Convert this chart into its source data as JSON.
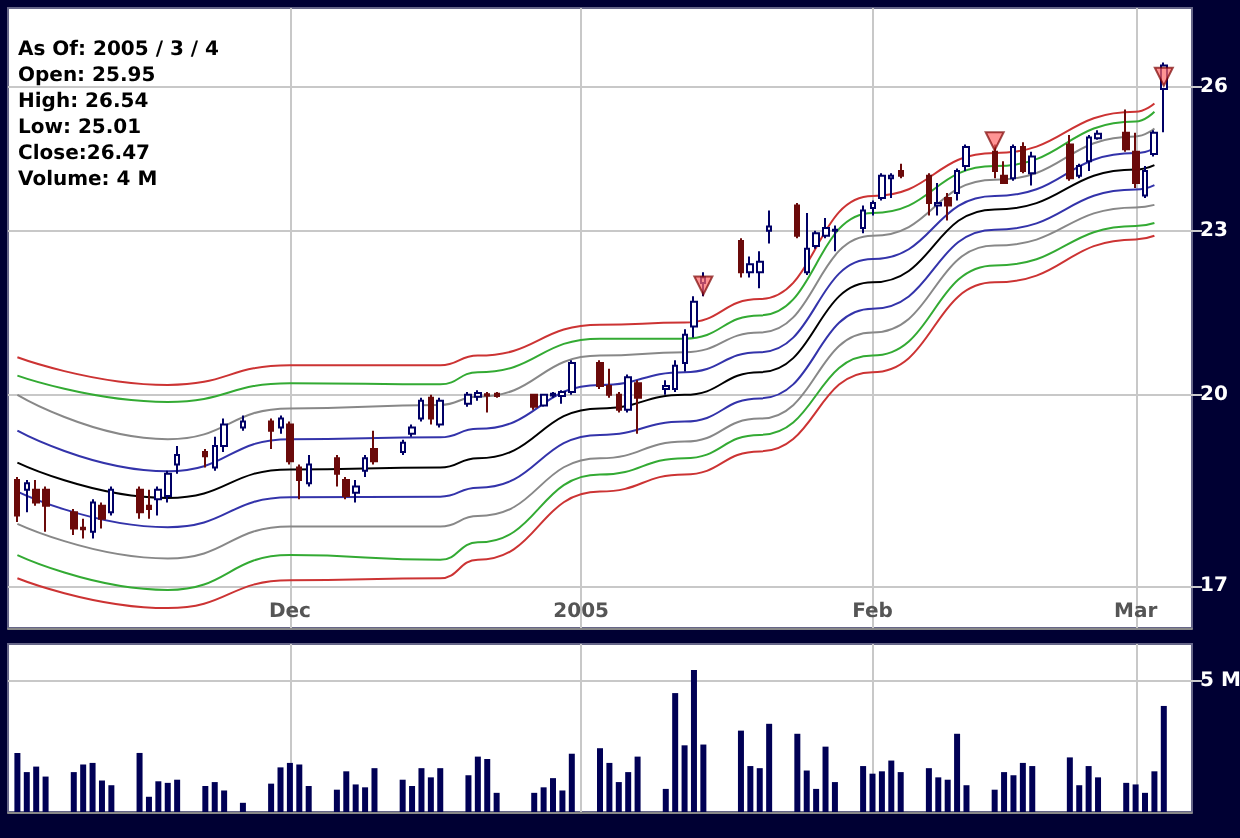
{
  "chart_data": [
    {
      "type": "candlestick",
      "annotations": [
        "As Of: 2005 / 3 / 4",
        "Open: 25.95",
        "High: 26.54",
        "Low: 25.01",
        "Close:26.47",
        "Volume: 4 M"
      ],
      "x": [
        "2004-11-02",
        "2004-11-03",
        "2004-11-04",
        "2004-11-05",
        "2004-11-08",
        "2004-11-09",
        "2004-11-10",
        "2004-11-11",
        "2004-11-12",
        "2004-11-15",
        "2004-11-16",
        "2004-11-17",
        "2004-11-18",
        "2004-11-19",
        "2004-11-22",
        "2004-11-23",
        "2004-11-24",
        "2004-11-26",
        "2004-11-29",
        "2004-11-30",
        "2004-12-01",
        "2004-12-02",
        "2004-12-03",
        "2004-12-06",
        "2004-12-07",
        "2004-12-08",
        "2004-12-09",
        "2004-12-10",
        "2004-12-13",
        "2004-12-14",
        "2004-12-15",
        "2004-12-16",
        "2004-12-17",
        "2004-12-20",
        "2004-12-21",
        "2004-12-22",
        "2004-12-23",
        "2004-12-27",
        "2004-12-28",
        "2004-12-29",
        "2004-12-30",
        "2004-12-31",
        "2005-01-03",
        "2005-01-04",
        "2005-01-05",
        "2005-01-06",
        "2005-01-07",
        "2005-01-10",
        "2005-01-11",
        "2005-01-12",
        "2005-01-13",
        "2005-01-14",
        "2005-01-18",
        "2005-01-19",
        "2005-01-20",
        "2005-01-21",
        "2005-01-24",
        "2005-01-25",
        "2005-01-26",
        "2005-01-27",
        "2005-01-28",
        "2005-01-31",
        "2005-02-01",
        "2005-02-02",
        "2005-02-03",
        "2005-02-04",
        "2005-02-07",
        "2005-02-08",
        "2005-02-09",
        "2005-02-10",
        "2005-02-11",
        "2005-02-14",
        "2005-02-15",
        "2005-02-16",
        "2005-02-17",
        "2005-02-18",
        "2005-02-22",
        "2005-02-23",
        "2005-02-24",
        "2005-02-25",
        "2005-02-28",
        "2005-03-01",
        "2005-03-02",
        "2005-03-03",
        "2005-03-04"
      ],
      "ohlc": [
        [
          18.6,
          18.65,
          17.95,
          18.05
        ],
        [
          18.45,
          18.6,
          18.1,
          18.55
        ],
        [
          18.45,
          18.6,
          18.2,
          18.25
        ],
        [
          18.45,
          18.5,
          17.8,
          18.2
        ],
        [
          18.1,
          18.15,
          17.75,
          17.85
        ],
        [
          17.86,
          18.0,
          17.7,
          17.84
        ],
        [
          17.8,
          18.3,
          17.7,
          18.25
        ],
        [
          18.2,
          18.25,
          17.85,
          18.0
        ],
        [
          18.1,
          18.5,
          18.05,
          18.45
        ],
        [
          18.45,
          18.5,
          18.0,
          18.1
        ],
        [
          18.2,
          18.45,
          18.0,
          18.15
        ],
        [
          18.3,
          18.5,
          18.05,
          18.45
        ],
        [
          18.35,
          18.75,
          18.25,
          18.7
        ],
        [
          18.85,
          19.15,
          18.7,
          19.0
        ],
        [
          19.05,
          19.1,
          18.8,
          18.98
        ],
        [
          18.8,
          19.3,
          18.75,
          19.15
        ],
        [
          19.15,
          19.6,
          19.05,
          19.5
        ],
        [
          19.45,
          19.65,
          19.4,
          19.55
        ],
        [
          19.55,
          19.6,
          19.1,
          19.4
        ],
        [
          19.45,
          19.65,
          19.35,
          19.6
        ],
        [
          19.5,
          19.55,
          18.85,
          18.9
        ],
        [
          18.8,
          18.85,
          18.3,
          18.6
        ],
        [
          18.55,
          19.0,
          18.5,
          18.85
        ],
        [
          18.95,
          19.0,
          18.5,
          18.7
        ],
        [
          18.6,
          18.65,
          18.3,
          18.35
        ],
        [
          18.4,
          18.6,
          18.25,
          18.5
        ],
        [
          18.75,
          19.0,
          18.65,
          18.95
        ],
        [
          19.1,
          19.4,
          18.85,
          18.9
        ],
        [
          19.05,
          19.25,
          19.0,
          19.2
        ],
        [
          19.35,
          19.5,
          19.3,
          19.45
        ],
        [
          19.6,
          19.95,
          19.55,
          19.9
        ],
        [
          19.95,
          20.0,
          19.5,
          19.6
        ],
        [
          19.5,
          19.95,
          19.45,
          19.9
        ],
        [
          19.85,
          20.05,
          19.8,
          20.0
        ],
        [
          19.97,
          20.08,
          19.9,
          20.03
        ],
        [
          20.01,
          20.05,
          19.7,
          19.99
        ],
        [
          20.02,
          20.05,
          19.95,
          19.98
        ],
        [
          20.0,
          20.02,
          19.75,
          19.8
        ],
        [
          19.82,
          20.02,
          19.8,
          20.0
        ],
        [
          19.99,
          20.05,
          19.95,
          20.02
        ],
        [
          19.98,
          20.08,
          19.85,
          20.05
        ],
        [
          20.05,
          20.6,
          20.0,
          20.55
        ],
        [
          20.55,
          20.6,
          20.1,
          20.15
        ],
        [
          20.15,
          20.45,
          19.95,
          20.0
        ],
        [
          20.0,
          20.05,
          19.7,
          19.75
        ],
        [
          19.75,
          20.35,
          19.7,
          20.3
        ],
        [
          20.2,
          20.25,
          19.35,
          19.95
        ],
        [
          20.1,
          20.25,
          20.0,
          20.15
        ],
        [
          20.1,
          20.6,
          20.05,
          20.5
        ],
        [
          20.55,
          21.15,
          20.4,
          21.05
        ],
        [
          21.2,
          21.75,
          21.0,
          21.65
        ],
        [
          22.0,
          22.2,
          21.75,
          22.1
        ],
        [
          22.8,
          22.85,
          22.1,
          22.2
        ],
        [
          22.2,
          22.5,
          22.1,
          22.35
        ],
        [
          22.2,
          22.6,
          21.9,
          22.4
        ],
        [
          23.0,
          23.4,
          22.75,
          23.08
        ],
        [
          23.5,
          23.55,
          22.85,
          22.9
        ],
        [
          22.2,
          23.35,
          22.15,
          22.65
        ],
        [
          22.7,
          23.0,
          22.65,
          22.95
        ],
        [
          22.9,
          23.25,
          22.85,
          23.05
        ],
        [
          23.0,
          23.1,
          22.6,
          23.02
        ],
        [
          23.05,
          23.5,
          22.95,
          23.4
        ],
        [
          23.45,
          23.6,
          23.3,
          23.55
        ],
        [
          23.65,
          24.15,
          23.6,
          24.1
        ],
        [
          24.05,
          24.15,
          23.65,
          24.1
        ],
        [
          24.2,
          24.35,
          24.05,
          24.1
        ],
        [
          24.1,
          24.15,
          23.3,
          23.55
        ],
        [
          23.5,
          23.95,
          23.3,
          23.55
        ],
        [
          23.65,
          23.75,
          23.2,
          23.5
        ],
        [
          23.75,
          24.25,
          23.6,
          24.2
        ],
        [
          24.3,
          24.75,
          24.2,
          24.7
        ],
        [
          24.6,
          24.75,
          24.05,
          24.2
        ],
        [
          24.1,
          24.4,
          23.95,
          23.95
        ],
        [
          24.05,
          24.75,
          24.0,
          24.7
        ],
        [
          24.7,
          24.8,
          24.15,
          24.2
        ],
        [
          24.15,
          24.6,
          23.9,
          24.5
        ],
        [
          24.75,
          24.95,
          24.0,
          24.05
        ],
        [
          24.1,
          24.35,
          24.05,
          24.3
        ],
        [
          24.4,
          24.95,
          24.2,
          24.9
        ],
        [
          24.88,
          25.05,
          24.85,
          24.98
        ],
        [
          25.0,
          25.5,
          24.6,
          24.65
        ],
        [
          24.6,
          25.0,
          23.85,
          23.95
        ],
        [
          23.7,
          24.3,
          23.65,
          24.2
        ],
        [
          24.55,
          25.05,
          24.5,
          25.0
        ],
        [
          25.95,
          26.54,
          25.01,
          26.47
        ]
      ],
      "series": [
        {
          "type": "line",
          "color": "#cc3333",
          "x": [
            "2004-11-02",
            "2004-11-18",
            "2004-12-01",
            "2004-12-17",
            "2004-12-21",
            "2005-01-03",
            "2005-01-12",
            "2005-01-20",
            "2005-02-01",
            "2005-02-14",
            "2005-03-01",
            "2005-03-03"
          ],
          "values": [
            20.65,
            20.17,
            20.51,
            20.51,
            20.68,
            21.23,
            21.27,
            21.7,
            23.69,
            24.57,
            25.45,
            25.63
          ]
        },
        {
          "type": "line",
          "color": "#33aa33",
          "x": [
            "2004-11-02",
            "2004-11-18",
            "2004-12-01",
            "2004-12-17",
            "2004-12-21",
            "2005-01-03",
            "2005-01-12",
            "2005-01-20",
            "2005-02-01",
            "2005-02-14",
            "2005-03-01",
            "2005-03-03"
          ],
          "values": [
            20.33,
            19.88,
            20.2,
            20.18,
            20.39,
            20.98,
            20.98,
            21.4,
            23.35,
            24.3,
            25.24,
            25.45
          ]
        },
        {
          "type": "line",
          "color": "#888888",
          "x": [
            "2004-11-02",
            "2004-11-18",
            "2004-12-01",
            "2004-12-17",
            "2004-12-21",
            "2005-01-03",
            "2005-01-12",
            "2005-01-20",
            "2005-02-01",
            "2005-02-14",
            "2005-03-01",
            "2005-03-03"
          ],
          "values": [
            20.0,
            19.26,
            19.77,
            19.83,
            19.97,
            20.68,
            20.74,
            21.09,
            22.9,
            24.02,
            24.92,
            25.09
          ]
        },
        {
          "type": "line",
          "color": "#3333aa",
          "x": [
            "2004-11-02",
            "2004-11-18",
            "2004-12-01",
            "2004-12-17",
            "2004-12-21",
            "2005-01-03",
            "2005-01-12",
            "2005-01-20",
            "2005-02-01",
            "2005-02-14",
            "2005-03-01",
            "2005-03-03"
          ],
          "values": [
            19.4,
            18.74,
            19.26,
            19.29,
            19.43,
            20.17,
            20.39,
            20.74,
            22.45,
            23.69,
            24.57,
            24.67
          ]
        },
        {
          "type": "line",
          "color": "#000000",
          "x": [
            "2004-11-02",
            "2004-11-18",
            "2004-12-01",
            "2004-12-17",
            "2004-12-21",
            "2005-01-03",
            "2005-01-12",
            "2005-01-20",
            "2005-02-01",
            "2005-02-14",
            "2005-03-01",
            "2005-03-03"
          ],
          "values": [
            18.88,
            18.32,
            18.77,
            18.8,
            18.95,
            19.77,
            20.0,
            20.39,
            22.01,
            23.42,
            24.23,
            24.32
          ]
        },
        {
          "type": "line",
          "color": "#3333aa",
          "x": [
            "2004-11-02",
            "2004-11-18",
            "2004-12-01",
            "2004-12-17",
            "2004-12-21",
            "2005-01-03",
            "2005-01-12",
            "2005-01-20",
            "2005-02-01",
            "2005-02-14",
            "2005-03-01",
            "2005-03-03"
          ],
          "values": [
            18.42,
            17.87,
            18.33,
            18.34,
            18.48,
            19.33,
            19.55,
            19.94,
            21.52,
            23.02,
            23.82,
            23.91
          ]
        },
        {
          "type": "line",
          "color": "#888888",
          "x": [
            "2004-11-02",
            "2004-11-18",
            "2004-12-01",
            "2004-12-17",
            "2004-12-21",
            "2005-01-03",
            "2005-01-12",
            "2005-01-20",
            "2005-02-01",
            "2005-02-14",
            "2005-03-01",
            "2005-03-03"
          ],
          "values": [
            17.92,
            17.4,
            17.88,
            17.88,
            18.04,
            18.95,
            19.22,
            19.6,
            21.09,
            22.71,
            23.46,
            23.51
          ]
        },
        {
          "type": "line",
          "color": "#33aa33",
          "x": [
            "2004-11-02",
            "2004-11-18",
            "2004-12-01",
            "2004-12-17",
            "2004-12-21",
            "2005-01-03",
            "2005-01-12",
            "2005-01-20",
            "2005-02-01",
            "2005-02-14",
            "2005-03-01",
            "2005-03-03"
          ],
          "values": [
            17.45,
            16.94,
            17.45,
            17.38,
            17.64,
            18.69,
            18.95,
            19.33,
            20.68,
            22.33,
            23.09,
            23.15
          ]
        },
        {
          "type": "line",
          "color": "#cc3333",
          "x": [
            "2004-11-02",
            "2004-11-18",
            "2004-12-01",
            "2004-12-17",
            "2004-12-21",
            "2005-01-03",
            "2005-01-12",
            "2005-01-20",
            "2005-02-01",
            "2005-02-14",
            "2005-03-01",
            "2005-03-03"
          ],
          "values": [
            17.11,
            16.68,
            17.08,
            17.11,
            17.38,
            18.42,
            18.69,
            19.06,
            20.39,
            22.01,
            22.83,
            22.9
          ]
        },
        {
          "type": "scatter",
          "color": "#ff6666",
          "marker": "triangle",
          "x": [
            "2005-01-14",
            "2005-02-14",
            "2005-03-04"
          ],
          "values": [
            21.95,
            24.82,
            26.22
          ]
        }
      ],
      "marker": "none",
      "log": "y",
      "ylim": [
        16.4,
        27.8
      ],
      "yticks": [
        17,
        20,
        23,
        26
      ],
      "xlim": [
        "2004-11-01",
        "2005-03-07"
      ],
      "xticks": [
        {
          "value": "2004-12-01",
          "label": "Dec"
        },
        {
          "value": "2005-01-01",
          "label": "2005"
        },
        {
          "value": "2005-02-01",
          "label": "Feb"
        },
        {
          "value": "2005-03-01",
          "label": "Mar"
        }
      ],
      "grid": true
    },
    {
      "type": "bar",
      "color": "#000055",
      "x": [
        "2004-11-02",
        "2004-11-03",
        "2004-11-04",
        "2004-11-05",
        "2004-11-08",
        "2004-11-09",
        "2004-11-10",
        "2004-11-11",
        "2004-11-12",
        "2004-11-15",
        "2004-11-16",
        "2004-11-17",
        "2004-11-18",
        "2004-11-19",
        "2004-11-22",
        "2004-11-23",
        "2004-11-24",
        "2004-11-26",
        "2004-11-29",
        "2004-11-30",
        "2004-12-01",
        "2004-12-02",
        "2004-12-03",
        "2004-12-06",
        "2004-12-07",
        "2004-12-08",
        "2004-12-09",
        "2004-12-10",
        "2004-12-13",
        "2004-12-14",
        "2004-12-15",
        "2004-12-16",
        "2004-12-17",
        "2004-12-20",
        "2004-12-21",
        "2004-12-22",
        "2004-12-23",
        "2004-12-27",
        "2004-12-28",
        "2004-12-29",
        "2004-12-30",
        "2004-12-31",
        "2005-01-03",
        "2005-01-04",
        "2005-01-05",
        "2005-01-06",
        "2005-01-07",
        "2005-01-10",
        "2005-01-11",
        "2005-01-12",
        "2005-01-13",
        "2005-01-14",
        "2005-01-18",
        "2005-01-19",
        "2005-01-20",
        "2005-01-21",
        "2005-01-24",
        "2005-01-25",
        "2005-01-26",
        "2005-01-27",
        "2005-01-28",
        "2005-01-31",
        "2005-02-01",
        "2005-02-02",
        "2005-02-03",
        "2005-02-04",
        "2005-02-07",
        "2005-02-08",
        "2005-02-09",
        "2005-02-10",
        "2005-02-11",
        "2005-02-14",
        "2005-02-15",
        "2005-02-16",
        "2005-02-17",
        "2005-02-18",
        "2005-02-22",
        "2005-02-23",
        "2005-02-24",
        "2005-02-25",
        "2005-02-28",
        "2005-03-01",
        "2005-03-02",
        "2005-03-03",
        "2005-03-04"
      ],
      "values": [
        2.25,
        1.52,
        1.73,
        1.35,
        1.52,
        1.81,
        1.87,
        1.2,
        1.02,
        2.25,
        0.58,
        1.17,
        1.11,
        1.23,
        0.99,
        1.14,
        0.82,
        0.35,
        1.08,
        1.7,
        1.87,
        1.81,
        0.99,
        0.85,
        1.55,
        1.05,
        0.94,
        1.67,
        1.23,
        0.99,
        1.67,
        1.32,
        1.67,
        1.4,
        2.11,
        2.02,
        0.73,
        0.73,
        0.94,
        1.29,
        0.82,
        2.22,
        2.43,
        1.87,
        1.14,
        1.52,
        2.11,
        0.88,
        4.53,
        2.54,
        5.41,
        2.57,
        3.1,
        1.75,
        1.67,
        3.36,
        2.98,
        1.58,
        0.88,
        2.49,
        1.14,
        1.75,
        1.46,
        1.55,
        1.96,
        1.52,
        1.67,
        1.32,
        1.23,
        2.98,
        1.02,
        0.85,
        1.52,
        1.4,
        1.87,
        1.75,
        2.08,
        1.02,
        1.75,
        1.32,
        1.11,
        1.05,
        0.73,
        1.55,
        4.04
      ],
      "ylim": [
        0,
        6.4
      ],
      "yticks": [
        {
          "value": 5,
          "label": "5 M"
        }
      ],
      "xlim": [
        "2004-11-01",
        "2005-03-07"
      ],
      "xticks": [
        {
          "value": "2004-12-01",
          "label": null
        },
        {
          "value": "2005-01-01",
          "label": null
        },
        {
          "value": "2005-02-01",
          "label": null
        },
        {
          "value": "2005-03-01",
          "label": null
        }
      ],
      "grid": true,
      "tick_labels": "y"
    }
  ]
}
